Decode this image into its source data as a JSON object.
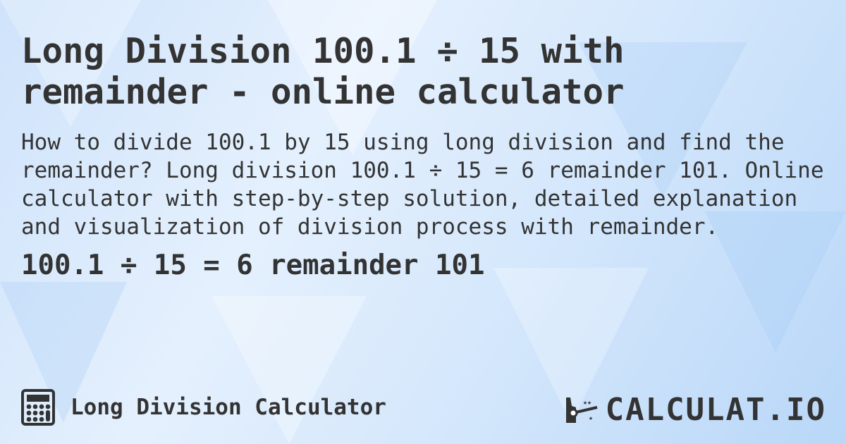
{
  "title": "Long Division 100.1 ÷ 15 with remainder - online calculator",
  "description": "How to divide 100.1 by 15 using long division and find the remainder? Long division 100.1 ÷ 15 = 6 remainder 101. Online calculator with step-by-step solution, detailed explanation and visualization of division process with remainder.",
  "result": "100.1 ÷ 15 = 6 remainder 101",
  "footer": {
    "icon": "calculator-icon",
    "label": "Long Division Calculator"
  },
  "logo": {
    "text": "CALCULAT.IO",
    "icon": "magic-wand-hand-icon"
  },
  "colors": {
    "text": "#333333",
    "background": "#d6e8fc"
  }
}
